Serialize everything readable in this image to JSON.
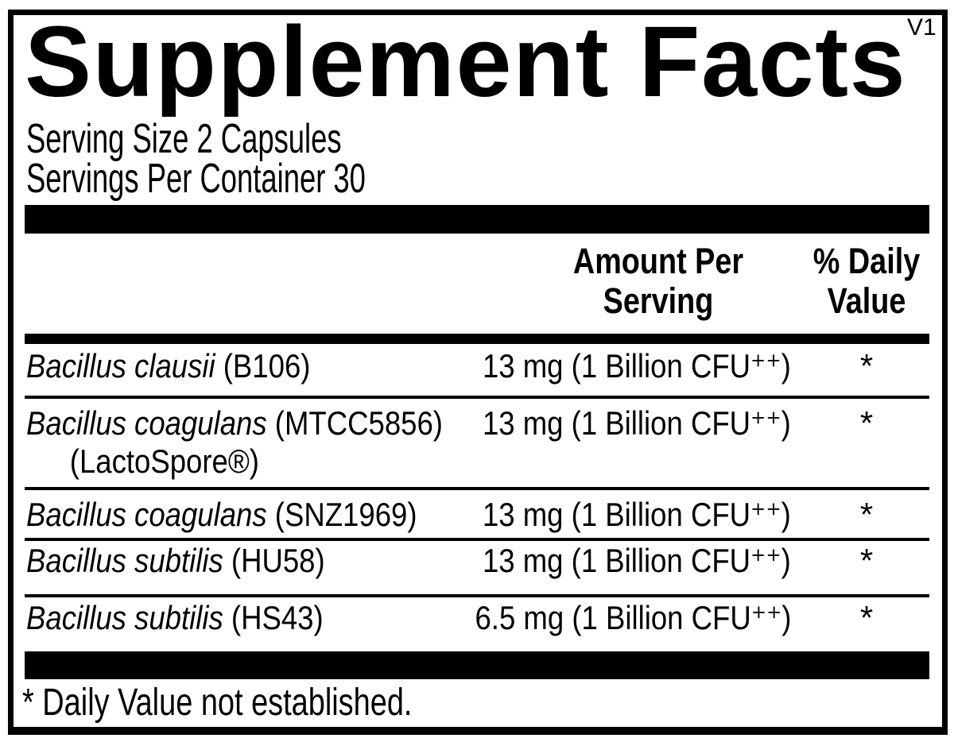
{
  "label": {
    "title": "Supplement Facts",
    "version": "V1",
    "serving_size": "Serving Size 2 Capsules",
    "servings_per_container": "Servings Per Container 30",
    "headers": {
      "amount_line1": "Amount Per",
      "amount_line2": "Serving",
      "dv_line1": "% Daily",
      "dv_line2": "Value"
    },
    "rows": [
      {
        "name_italic": "Bacillus clausii",
        "name_rest": " (B106)",
        "amount": "13 mg (1 Billion CFU⁺⁺)",
        "daily_value": "*"
      },
      {
        "name_italic": "Bacillus coagulans",
        "name_rest": " (MTCC5856)",
        "name_line2": "(LactoSpore®)",
        "amount": "13 mg (1 Billion CFU⁺⁺)",
        "daily_value": "*"
      },
      {
        "name_italic": "Bacillus coagulans",
        "name_rest": " (SNZ1969)",
        "amount": "13 mg (1 Billion CFU⁺⁺)",
        "daily_value": "*"
      },
      {
        "name_italic": "Bacillus subtilis",
        "name_rest": " (HU58)",
        "amount": "13 mg (1 Billion CFU⁺⁺)",
        "daily_value": "*"
      },
      {
        "name_italic": "Bacillus subtilis",
        "name_rest": " (HS43)",
        "amount": "6.5 mg (1 Billion CFU⁺⁺)",
        "daily_value": "*"
      }
    ],
    "footnote": "* Daily Value not established.",
    "colors": {
      "ink": "#000000",
      "background": "#ffffff"
    }
  }
}
